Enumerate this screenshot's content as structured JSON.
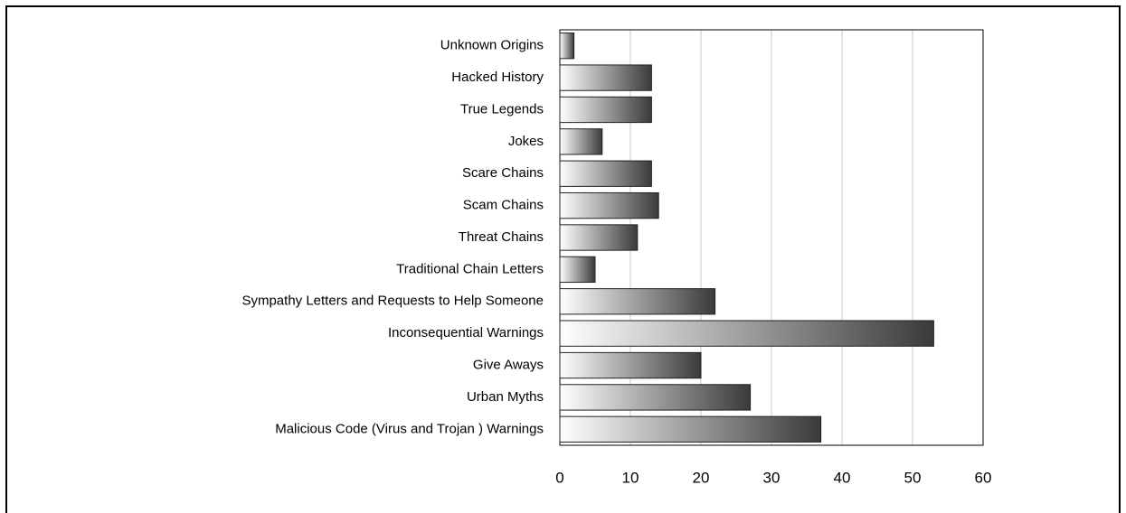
{
  "chart_data": {
    "type": "bar",
    "orientation": "horizontal",
    "categories": [
      "Unknown Origins",
      "Hacked History",
      "True Legends",
      "Jokes",
      "Scare Chains",
      "Scam Chains",
      "Threat Chains",
      "Traditional Chain Letters",
      "Sympathy Letters and Requests to Help Someone",
      "Inconsequential Warnings",
      "Give Aways",
      "Urban Myths",
      "Malicious Code (Virus and Trojan ) Warnings"
    ],
    "values": [
      2,
      13,
      13,
      6,
      13,
      14,
      11,
      5,
      22,
      53,
      20,
      27,
      37
    ],
    "color": "#3a3a3a",
    "xlim": [
      0,
      60
    ],
    "xticks": [
      0,
      10,
      20,
      30,
      40,
      50,
      60
    ],
    "grid": true
  }
}
